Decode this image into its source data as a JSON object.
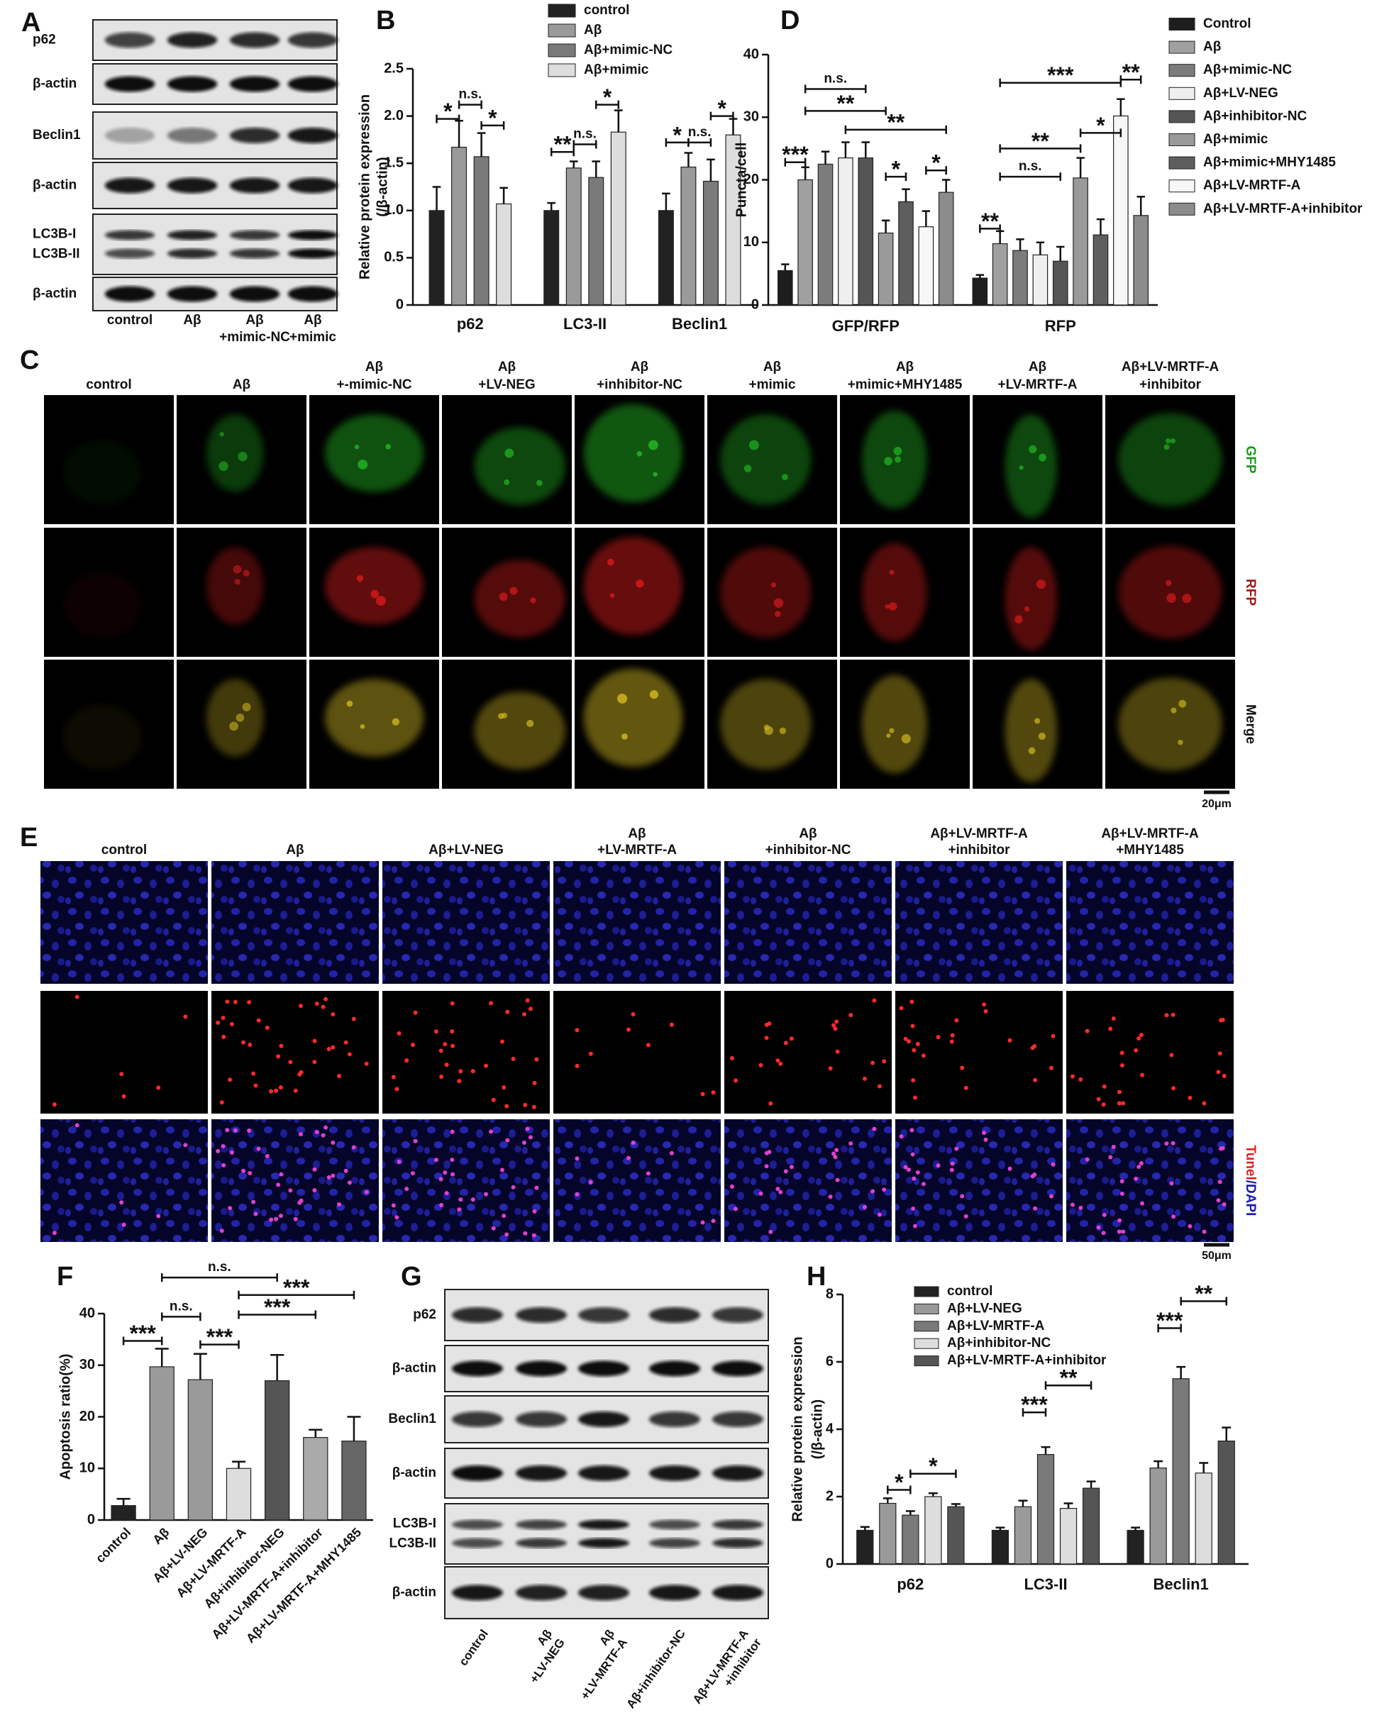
{
  "chart_data": [
    {
      "type": "bar",
      "label": "B",
      "ylabel": [
        "Relative protein expression",
        "(/β-actin)"
      ],
      "categories": [
        "p62",
        "LC3-II",
        "Beclin1"
      ],
      "series": [
        {
          "name": "control",
          "color": "#222222",
          "values": [
            1.0,
            1.0,
            1.0
          ],
          "errors": [
            0.25,
            0.08,
            0.18
          ]
        },
        {
          "name": "Aβ",
          "color": "#9a9a9a",
          "values": [
            1.67,
            1.45,
            1.46
          ],
          "errors": [
            0.28,
            0.07,
            0.15
          ]
        },
        {
          "name": "Aβ+mimic-NC",
          "color": "#7a7a7a",
          "values": [
            1.57,
            1.35,
            1.31
          ],
          "errors": [
            0.25,
            0.17,
            0.23
          ]
        },
        {
          "name": "Aβ+mimic",
          "color": "#dddddd",
          "values": [
            1.07,
            1.83,
            1.8
          ],
          "errors": [
            0.17,
            0.23,
            0.17
          ]
        }
      ],
      "ylim": [
        0,
        2.5
      ],
      "yticks": [
        0,
        0.5,
        {
          "value": 1,
          "label": "1.0"
        },
        1.5,
        {
          "value": 2,
          "label": "2.0"
        },
        2.5
      ],
      "legend": "top",
      "annotations": [
        "*",
        "n.s.",
        "*",
        "**",
        "n.s.",
        "*",
        "*",
        "n.s.",
        "*"
      ]
    },
    {
      "type": "bar",
      "label": "D",
      "ylabel": [
        "Puncta/cell"
      ],
      "categories": [
        "GFP/RFP",
        "RFP"
      ],
      "series": [
        {
          "name": "Control",
          "color": "#1e1e1e",
          "values": [
            5.5,
            4.3
          ],
          "errors": [
            1.0,
            0.5
          ]
        },
        {
          "name": "Aβ",
          "color": "#a0a0a0",
          "values": [
            20,
            9.8
          ],
          "errors": [
            2,
            2
          ]
        },
        {
          "name": "Aβ+mimic-NC",
          "color": "#7c7c7c",
          "values": [
            22.5,
            8.7
          ],
          "errors": [
            2,
            1.8
          ]
        },
        {
          "name": "Aβ+LV-NEG",
          "color": "#efefef",
          "values": [
            23.5,
            8
          ],
          "errors": [
            2.5,
            2
          ]
        },
        {
          "name": "Aβ+inhibitor-NC",
          "color": "#555555",
          "values": [
            23.5,
            7
          ],
          "errors": [
            2.5,
            2.3
          ]
        },
        {
          "name": "Aβ+mimic",
          "color": "#9a9a9a",
          "values": [
            11.5,
            20.3
          ],
          "errors": [
            2,
            3.2
          ]
        },
        {
          "name": "Aβ+mimic+MHY1485",
          "color": "#5e5e5e",
          "values": [
            16.5,
            11.2
          ],
          "errors": [
            2,
            2.5
          ]
        },
        {
          "name": "Aβ+LV-MRTF-A",
          "color": "#f7f7f7",
          "values": [
            12.5,
            30.2
          ],
          "errors": [
            2.5,
            2.7
          ]
        },
        {
          "name": "Aβ+LV-MRTF-A+inhibitor",
          "color": "#8c8c8c",
          "values": [
            18,
            14.3
          ],
          "errors": [
            2,
            3
          ]
        }
      ],
      "ylim": [
        0,
        40
      ],
      "yticks": [
        0,
        10,
        20,
        30,
        40
      ],
      "legend": "right",
      "annotations": [
        "***",
        "n.s.",
        "**",
        "**",
        "*",
        "*",
        "**",
        "n.s.",
        "**",
        "*",
        "***",
        "**"
      ]
    },
    {
      "type": "bar",
      "label": "F",
      "ylabel": [
        "Apoptosis ratio(%)"
      ],
      "categories": [
        "control",
        "Aβ",
        "Aβ+LV-NEG",
        "Aβ+LV-MRTF-A",
        "Aβ+inhibitor-NEG",
        "Aβ+LV-MRTF-A+inhibitor",
        "Aβ+LV-MRTF-A+MHY1485"
      ],
      "values": [
        2.8,
        29.7,
        27.2,
        10,
        27,
        16,
        15.3
      ],
      "errors": [
        1.3,
        3.5,
        5,
        1.3,
        5,
        1.5,
        4.7
      ],
      "colors": [
        "#222222",
        "#9a9a9a",
        "#9a9a9a",
        "#dddddd",
        "#555555",
        "#aaaaaa",
        "#666666"
      ],
      "ylim": [
        0,
        40
      ],
      "yticks": [
        0,
        10,
        20,
        30,
        40
      ],
      "annotations": [
        "***",
        "n.s.",
        "***",
        "n.s.",
        "***",
        "***"
      ]
    },
    {
      "type": "bar",
      "label": "H",
      "ylabel": [
        "Relative protein expression",
        "(/β-actin)"
      ],
      "categories": [
        "p62",
        "LC3-II",
        "Beclin1"
      ],
      "series": [
        {
          "name": "control",
          "color": "#222222",
          "values": [
            1.0,
            1.0,
            1.0
          ],
          "errors": [
            0.1,
            0.08,
            0.08
          ]
        },
        {
          "name": "Aβ+LV-NEG",
          "color": "#9a9a9a",
          "values": [
            1.8,
            1.7,
            2.85
          ],
          "errors": [
            0.15,
            0.18,
            0.2
          ]
        },
        {
          "name": "Aβ+LV-MRTF-A",
          "color": "#7a7a7a",
          "values": [
            1.45,
            3.25,
            5.5
          ],
          "errors": [
            0.12,
            0.22,
            0.35
          ]
        },
        {
          "name": "Aβ+inhibitor-NC",
          "color": "#dddddd",
          "values": [
            2.0,
            1.65,
            2.7
          ],
          "errors": [
            0.1,
            0.15,
            0.3
          ]
        },
        {
          "name": "Aβ+LV-MRTF-A+inhibitor",
          "color": "#555555",
          "values": [
            1.7,
            2.25,
            3.65
          ],
          "errors": [
            0.08,
            0.2,
            0.4
          ]
        }
      ],
      "ylim": [
        0,
        8
      ],
      "yticks": [
        0,
        2,
        4,
        6,
        8
      ],
      "legend": "top",
      "annotations": [
        "*",
        "*",
        "***",
        "**",
        "***",
        "**"
      ]
    }
  ],
  "figure": {
    "blot_a": {
      "label": "A",
      "rows": [
        [
          "p62"
        ],
        [
          "β-actin"
        ],
        [
          "Beclin1"
        ],
        [
          "β-actin"
        ],
        [
          "LC3B-I",
          "LC3B-II"
        ],
        [
          "β-actin"
        ]
      ],
      "lanes": [
        [
          "control"
        ],
        [
          "Aβ"
        ],
        [
          "Aβ",
          "+mimic-NC"
        ],
        [
          "Aβ",
          "+mimic"
        ]
      ]
    },
    "micrographs_c": {
      "label": "C",
      "columns": [
        [
          "control"
        ],
        [
          "Aβ"
        ],
        [
          "Aβ",
          "+-mimic-NC"
        ],
        [
          "Aβ",
          "+LV-NEG"
        ],
        [
          "Aβ",
          "+inhibitor-NC"
        ],
        [
          "Aβ",
          "+mimic"
        ],
        [
          "Aβ",
          "+mimic+MHY1485"
        ],
        [
          "Aβ",
          "+LV-MRTF-A"
        ],
        [
          "Aβ+LV-MRTF-A",
          "+inhibitor"
        ]
      ],
      "rows": [
        "GFP",
        "RFP",
        "Merge"
      ],
      "scale_bar": "20μm"
    },
    "micrographs_e": {
      "label": "E",
      "columns": [
        [
          "control"
        ],
        [
          "Aβ"
        ],
        [
          "Aβ+LV-NEG"
        ],
        [
          "Aβ",
          "+LV-MRTF-A"
        ],
        [
          "Aβ",
          "+inhibitor-NC"
        ],
        [
          "Aβ+LV-MRTF-A",
          "+inhibitor"
        ],
        [
          "Aβ+LV-MRTF-A",
          "+MHY1485"
        ]
      ],
      "row_label": [
        "Tunel",
        "/DAPI"
      ],
      "scale_bar": "50μm"
    },
    "blot_g": {
      "label": "G",
      "rows": [
        [
          "p62"
        ],
        [
          "β-actin"
        ],
        [
          "Beclin1"
        ],
        [
          "β-actin"
        ],
        [
          "LC3B-I",
          "LC3B-II"
        ],
        [
          "β-actin"
        ]
      ],
      "lanes": [
        [
          "control"
        ],
        [
          "Aβ",
          "+LV-NEG"
        ],
        [
          "Aβ",
          "+LV-MRTF-A"
        ],
        [
          "Aβ+inhibitor-NC"
        ],
        [
          "Aβ+LV-MRTF-A",
          "+inhibitor"
        ]
      ]
    }
  }
}
